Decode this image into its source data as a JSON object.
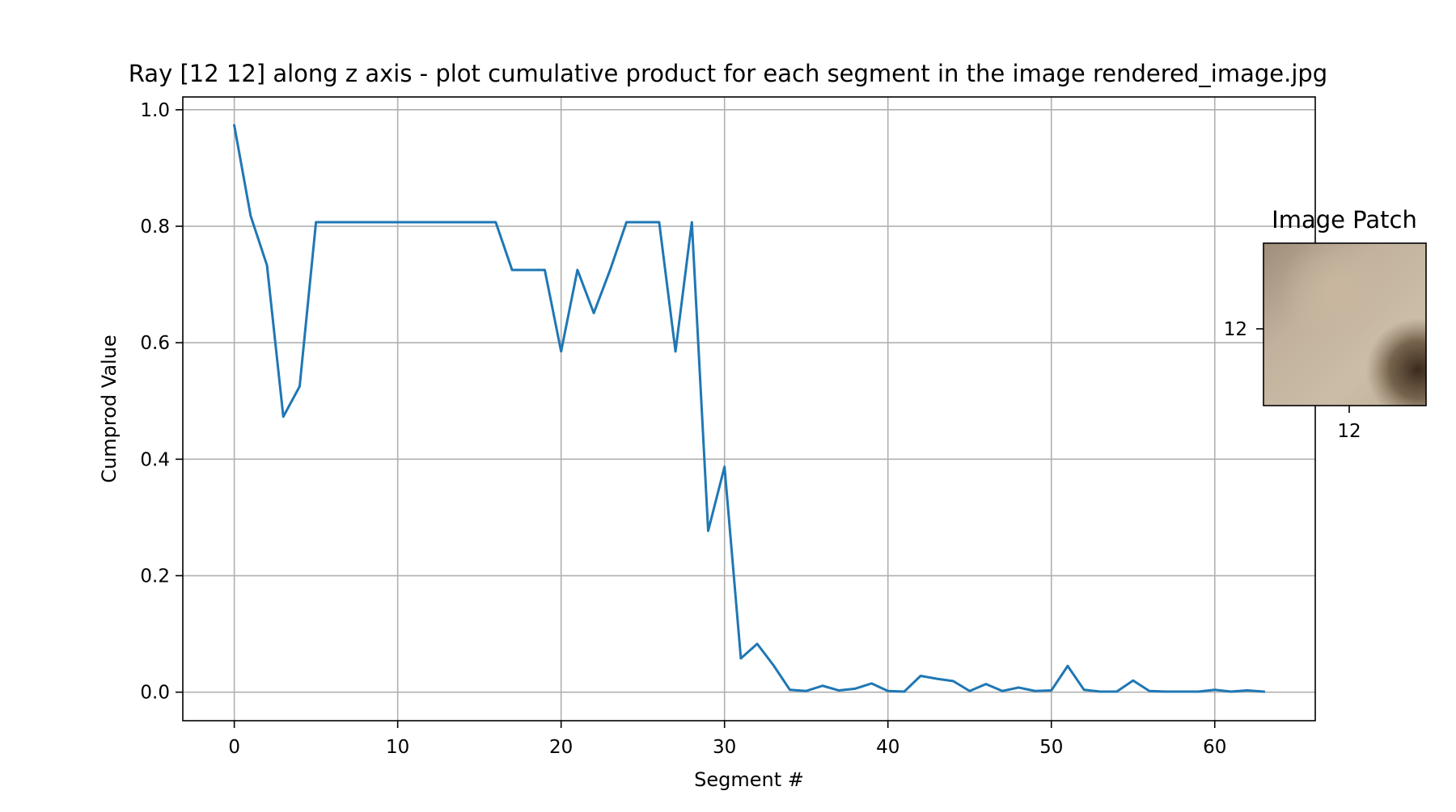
{
  "chart_data": [
    {
      "type": "line",
      "title": "Ray [12 12] along z axis - plot cumulative product for each segment in the image rendered_image.jpg",
      "xlabel": "Segment #",
      "ylabel": "Cumprod Value",
      "xlim": [
        -3.15,
        66.15
      ],
      "ylim": [
        -0.049,
        1.022
      ],
      "x_ticks": [
        0,
        10,
        20,
        30,
        40,
        50,
        60
      ],
      "y_ticks": [
        0.0,
        0.2,
        0.4,
        0.6,
        0.8,
        1.0
      ],
      "x_tick_labels": [
        "0",
        "10",
        "20",
        "30",
        "40",
        "50",
        "60"
      ],
      "y_tick_labels": [
        "0.0",
        "0.2",
        "0.4",
        "0.6",
        "0.8",
        "1.0"
      ],
      "grid": true,
      "series_color": "#1f77b4",
      "series": [
        {
          "x": [
            0,
            1,
            2,
            3,
            4,
            5,
            6,
            7,
            8,
            9,
            10,
            11,
            12,
            13,
            14,
            15,
            16,
            17,
            18,
            19,
            20,
            21,
            22,
            23,
            24,
            25,
            26,
            27,
            28,
            29,
            30,
            31,
            32,
            33,
            34,
            35,
            36,
            37,
            38,
            39,
            40,
            41,
            42,
            43,
            44,
            45,
            46,
            47,
            48,
            49,
            50,
            51,
            52,
            53,
            54,
            55,
            56,
            57,
            58,
            59,
            60,
            61,
            62,
            63
          ],
          "values": [
            0.973,
            0.818,
            0.733,
            0.473,
            0.525,
            0.807,
            0.807,
            0.807,
            0.807,
            0.807,
            0.807,
            0.807,
            0.807,
            0.807,
            0.807,
            0.807,
            0.807,
            0.725,
            0.725,
            0.725,
            0.585,
            0.725,
            0.651,
            0.725,
            0.807,
            0.807,
            0.807,
            0.585,
            0.807,
            0.277,
            0.387,
            0.058,
            0.083,
            0.046,
            0.004,
            0.002,
            0.011,
            0.003,
            0.006,
            0.015,
            0.002,
            0.001,
            0.028,
            0.023,
            0.019,
            0.002,
            0.014,
            0.002,
            0.008,
            0.002,
            0.003,
            0.045,
            0.004,
            0.001,
            0.001,
            0.02,
            0.002,
            0.001,
            0.001,
            0.001,
            0.004,
            0.001,
            0.003,
            0.001
          ]
        }
      ]
    },
    {
      "type": "heatmap",
      "title": "Image Patch",
      "x_ticks": [
        12
      ],
      "y_ticks": [
        12
      ],
      "x_tick_labels": [
        "12"
      ],
      "y_tick_labels": [
        "12"
      ],
      "marker": "12"
    }
  ]
}
